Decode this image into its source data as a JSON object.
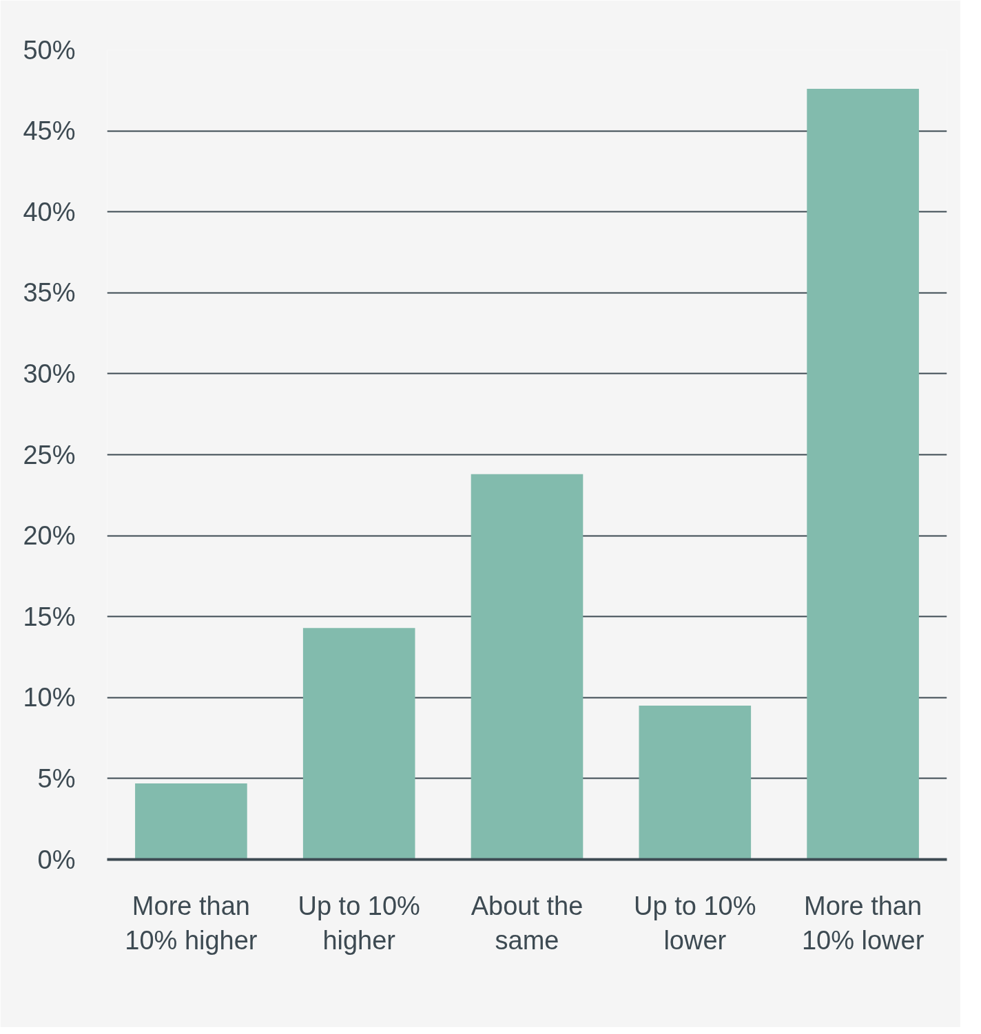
{
  "chart_data": {
    "type": "bar",
    "categories": [
      "More than 10% higher",
      "Up to 10% higher",
      "About the same",
      "Up to 10% lower",
      "More than 10% lower"
    ],
    "values": [
      4.7,
      14.3,
      23.8,
      9.5,
      47.6
    ],
    "color": "#82bbad",
    "ylim": [
      0,
      50
    ],
    "yticks": [
      {
        "value": 0,
        "label": "0%"
      },
      {
        "value": 5,
        "label": "5%"
      },
      {
        "value": 10,
        "label": "10%"
      },
      {
        "value": 15,
        "label": "15%"
      },
      {
        "value": 20,
        "label": "20%"
      },
      {
        "value": 25,
        "label": "25%"
      },
      {
        "value": 30,
        "label": "30%"
      },
      {
        "value": 35,
        "label": "35%"
      },
      {
        "value": 40,
        "label": "40%"
      },
      {
        "value": 45,
        "label": "45%"
      },
      {
        "value": 50,
        "label": "50%"
      }
    ],
    "grid": "y"
  }
}
